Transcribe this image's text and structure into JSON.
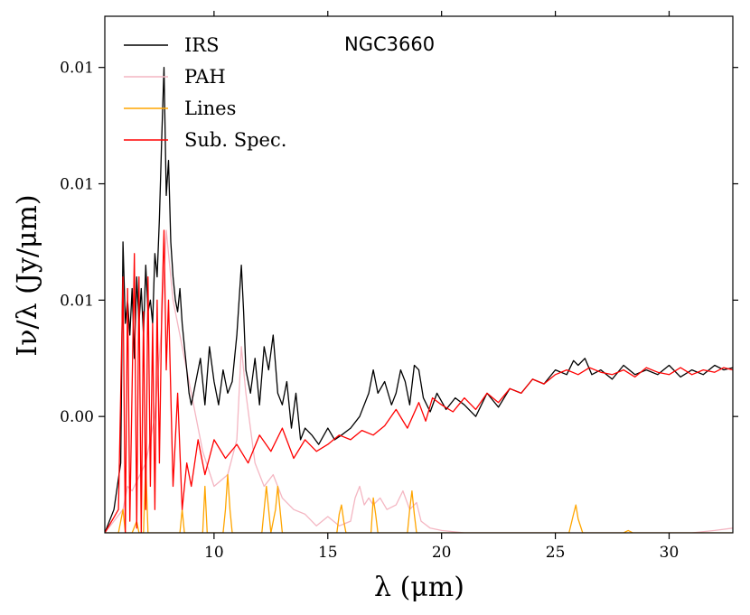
{
  "chart_data": {
    "type": "line",
    "title": "NGC3660",
    "xlabel": "λ (μm)",
    "ylabel": "Iν/λ (Jy/μm)",
    "xlim": [
      5.2,
      32.8
    ],
    "ylim": [
      -0.005,
      0.0172
    ],
    "xticks": [
      10,
      15,
      20,
      25,
      30
    ],
    "xtick_labels": [
      "10",
      "15",
      "20",
      "25",
      "30"
    ],
    "yticks": [
      0.0,
      0.005,
      0.01,
      0.015
    ],
    "ytick_labels": [
      "0.00",
      "0.01",
      "0.01",
      "0.01"
    ],
    "legend_position": "upper-left",
    "colors": {
      "IRS": "#000000",
      "PAH": "#f4b6c2",
      "Lines": "#ffa500",
      "Sub. Spec.": "#ff0000"
    },
    "series": [
      {
        "name": "IRS",
        "x": [
          5.2,
          5.6,
          5.9,
          6.0,
          6.1,
          6.2,
          6.3,
          6.4,
          6.5,
          6.6,
          6.7,
          6.8,
          6.9,
          7.0,
          7.1,
          7.2,
          7.3,
          7.4,
          7.5,
          7.6,
          7.7,
          7.8,
          7.9,
          8.0,
          8.1,
          8.2,
          8.3,
          8.4,
          8.5,
          8.6,
          8.7,
          8.8,
          8.9,
          9.0,
          9.2,
          9.4,
          9.6,
          9.8,
          10.0,
          10.2,
          10.4,
          10.6,
          10.8,
          11.0,
          11.1,
          11.2,
          11.3,
          11.4,
          11.6,
          11.8,
          12.0,
          12.2,
          12.4,
          12.6,
          12.8,
          13.0,
          13.2,
          13.4,
          13.6,
          13.8,
          14.0,
          14.3,
          14.6,
          15.0,
          15.3,
          15.6,
          16.0,
          16.4,
          16.8,
          17.0,
          17.2,
          17.5,
          17.8,
          18.0,
          18.2,
          18.4,
          18.6,
          18.8,
          19.0,
          19.2,
          19.5,
          19.8,
          20.2,
          20.6,
          21.0,
          21.5,
          22.0,
          22.5,
          23.0,
          23.5,
          24.0,
          24.5,
          25.0,
          25.5,
          25.8,
          26.0,
          26.3,
          26.6,
          27.0,
          27.5,
          28.0,
          28.5,
          29.0,
          29.5,
          30.0,
          30.5,
          31.0,
          31.5,
          32.0,
          32.4,
          32.8
        ],
        "y": [
          -0.005,
          -0.004,
          -0.002,
          0.0075,
          0.004,
          0.005,
          0.0035,
          0.0055,
          0.0025,
          0.006,
          0.004,
          0.0055,
          0.0035,
          0.0065,
          0.0045,
          0.005,
          0.004,
          0.007,
          0.006,
          0.0085,
          0.012,
          0.015,
          0.0095,
          0.011,
          0.0075,
          0.006,
          0.005,
          0.0045,
          0.0055,
          0.004,
          0.003,
          0.002,
          0.001,
          0.0005,
          0.0015,
          0.0025,
          0.0005,
          0.003,
          0.0015,
          0.0005,
          0.002,
          0.001,
          0.0015,
          0.0035,
          0.005,
          0.0065,
          0.0045,
          0.002,
          0.001,
          0.0025,
          0.0005,
          0.003,
          0.002,
          0.0035,
          0.001,
          0.0005,
          0.0015,
          -0.0005,
          0.001,
          -0.001,
          -0.0005,
          -0.0008,
          -0.0012,
          -0.0005,
          -0.001,
          -0.0008,
          -0.0005,
          0.0,
          0.001,
          0.002,
          0.001,
          0.0015,
          0.0005,
          0.001,
          0.002,
          0.0015,
          0.0005,
          0.0022,
          0.002,
          0.0008,
          0.0002,
          0.001,
          0.0003,
          0.0008,
          0.0005,
          0.0,
          0.001,
          0.0004,
          0.0012,
          0.001,
          0.0016,
          0.0014,
          0.002,
          0.0018,
          0.0024,
          0.0022,
          0.0025,
          0.0018,
          0.002,
          0.0016,
          0.0022,
          0.0018,
          0.002,
          0.0018,
          0.0022,
          0.0017,
          0.002,
          0.0018,
          0.0022,
          0.002,
          0.0021
        ]
      },
      {
        "name": "PAH",
        "x": [
          5.2,
          6.0,
          6.2,
          6.4,
          7.0,
          7.4,
          7.7,
          7.9,
          8.2,
          8.6,
          9.0,
          9.5,
          10.0,
          10.6,
          11.0,
          11.2,
          11.4,
          11.8,
          12.2,
          12.6,
          13.0,
          13.5,
          14.0,
          14.5,
          15.0,
          15.5,
          16.0,
          16.2,
          16.4,
          16.6,
          16.8,
          17.0,
          17.3,
          17.6,
          18.0,
          18.3,
          18.6,
          18.9,
          19.1,
          19.5,
          20.0,
          21.0,
          22.0,
          24.0,
          26.0,
          28.0,
          30.0,
          31.0,
          32.0,
          32.8
        ],
        "y": [
          -0.005,
          -0.004,
          -0.003,
          -0.0032,
          -0.002,
          0.0,
          0.004,
          0.008,
          0.005,
          0.003,
          0.001,
          -0.0015,
          -0.003,
          -0.0025,
          -0.001,
          0.003,
          0.001,
          -0.002,
          -0.003,
          -0.0025,
          -0.0035,
          -0.004,
          -0.0042,
          -0.0047,
          -0.0043,
          -0.0047,
          -0.0045,
          -0.0035,
          -0.003,
          -0.0038,
          -0.0035,
          -0.0038,
          -0.0035,
          -0.004,
          -0.0038,
          -0.0032,
          -0.004,
          -0.0037,
          -0.0045,
          -0.0048,
          -0.0049,
          -0.005,
          -0.005,
          -0.005,
          -0.005,
          -0.005,
          -0.005,
          -0.005,
          -0.0049,
          -0.0048
        ]
      },
      {
        "name": "Lines",
        "x": [
          5.2,
          5.8,
          6.0,
          6.1,
          6.2,
          6.4,
          6.6,
          6.7,
          6.9,
          7.0,
          7.1,
          7.3,
          8.5,
          8.6,
          8.7,
          8.9,
          9.5,
          9.6,
          9.7,
          9.8,
          10.4,
          10.5,
          10.6,
          10.7,
          10.8,
          12.1,
          12.2,
          12.3,
          12.4,
          12.5,
          12.7,
          12.8,
          12.9,
          13.0,
          15.4,
          15.5,
          15.6,
          15.7,
          15.8,
          16.9,
          17.0,
          17.1,
          17.2,
          18.5,
          18.6,
          18.7,
          18.8,
          18.9,
          25.6,
          25.8,
          25.9,
          26.0,
          26.2,
          28.0,
          28.2,
          28.4,
          32.8
        ],
        "y": [
          -0.005,
          -0.005,
          -0.004,
          -0.005,
          -0.005,
          -0.005,
          -0.0045,
          -0.005,
          -0.005,
          -0.002,
          -0.005,
          -0.005,
          -0.005,
          -0.004,
          -0.005,
          -0.005,
          -0.005,
          -0.003,
          -0.005,
          -0.005,
          -0.005,
          -0.004,
          -0.0025,
          -0.004,
          -0.005,
          -0.005,
          -0.004,
          -0.003,
          -0.004,
          -0.005,
          -0.004,
          -0.003,
          -0.004,
          -0.005,
          -0.005,
          -0.0042,
          -0.0038,
          -0.0045,
          -0.005,
          -0.005,
          -0.0035,
          -0.0042,
          -0.005,
          -0.005,
          -0.004,
          -0.0032,
          -0.0042,
          -0.005,
          -0.005,
          -0.0042,
          -0.0038,
          -0.0044,
          -0.005,
          -0.005,
          -0.0049,
          -0.005,
          -0.005
        ]
      },
      {
        "name": "Sub. Spec.",
        "x": [
          5.2,
          5.5,
          5.8,
          6.0,
          6.1,
          6.2,
          6.3,
          6.5,
          6.6,
          6.7,
          6.8,
          6.9,
          7.0,
          7.1,
          7.2,
          7.3,
          7.4,
          7.5,
          7.6,
          7.7,
          7.8,
          7.9,
          8.0,
          8.2,
          8.4,
          8.6,
          8.8,
          9.0,
          9.3,
          9.6,
          10.0,
          10.5,
          11.0,
          11.5,
          12.0,
          12.5,
          13.0,
          13.5,
          14.0,
          14.5,
          15.0,
          15.5,
          16.0,
          16.5,
          17.0,
          17.5,
          18.0,
          18.5,
          19.0,
          19.3,
          19.6,
          20.0,
          20.5,
          21.0,
          21.5,
          22.0,
          22.5,
          23.0,
          23.5,
          24.0,
          24.5,
          25.0,
          25.5,
          26.0,
          26.5,
          27.0,
          27.5,
          28.0,
          28.5,
          29.0,
          29.5,
          30.0,
          30.5,
          31.0,
          31.5,
          32.0,
          32.4,
          32.8
        ],
        "y": [
          -0.005,
          -0.0045,
          -0.004,
          0.006,
          -0.005,
          0.0055,
          -0.0045,
          0.007,
          -0.0048,
          0.006,
          -0.005,
          0.0045,
          -0.004,
          0.006,
          -0.003,
          0.004,
          -0.004,
          0.005,
          -0.002,
          0.0045,
          0.008,
          0.002,
          0.005,
          -0.003,
          0.001,
          -0.004,
          -0.002,
          -0.003,
          -0.001,
          -0.0025,
          -0.001,
          -0.0018,
          -0.0012,
          -0.002,
          -0.0008,
          -0.0015,
          -0.0005,
          -0.0018,
          -0.001,
          -0.0015,
          -0.0012,
          -0.0008,
          -0.001,
          -0.0006,
          -0.0008,
          -0.0004,
          0.0003,
          -0.0005,
          0.0006,
          -0.0002,
          0.0008,
          0.0005,
          0.0002,
          0.0008,
          0.0003,
          0.001,
          0.0006,
          0.0012,
          0.001,
          0.0016,
          0.0014,
          0.0018,
          0.002,
          0.0018,
          0.0021,
          0.0019,
          0.0018,
          0.002,
          0.0017,
          0.0021,
          0.0019,
          0.0018,
          0.0021,
          0.0018,
          0.002,
          0.0019,
          0.0021,
          0.002
        ]
      }
    ]
  }
}
